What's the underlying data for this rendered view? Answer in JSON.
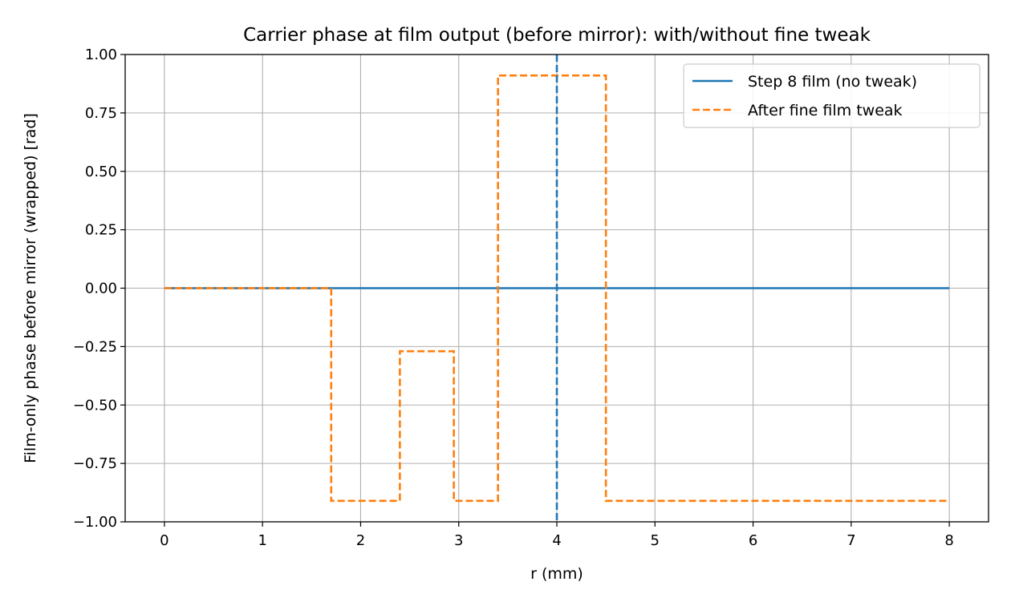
{
  "chart_data": {
    "type": "line",
    "title": "Carrier phase at film output (before mirror): with/without fine tweak",
    "xlabel": "r (mm)",
    "ylabel": "Film-only phase before mirror (wrapped) [rad]",
    "xlim": [
      -0.4,
      8.4
    ],
    "ylim": [
      -1.0,
      1.0
    ],
    "xticks": [
      0,
      1,
      2,
      3,
      4,
      5,
      6,
      7,
      8
    ],
    "yticks": [
      -1.0,
      -0.75,
      -0.5,
      -0.25,
      0.0,
      0.25,
      0.5,
      0.75,
      1.0
    ],
    "xtick_labels": [
      "0",
      "1",
      "2",
      "3",
      "4",
      "5",
      "6",
      "7",
      "8"
    ],
    "ytick_labels": [
      "−1.00",
      "−0.75",
      "−0.50",
      "−0.25",
      "0.00",
      "0.25",
      "0.50",
      "0.75",
      "1.00"
    ],
    "grid": true,
    "legend_position": "top-right",
    "vline": {
      "x": 4.0,
      "style": "dashed",
      "color": "#1f77b4"
    },
    "series": [
      {
        "name": "Step 8 film (no tweak)",
        "style": "solid",
        "color": "#1f77b4",
        "x": [
          0,
          8
        ],
        "y": [
          0.0,
          0.0
        ]
      },
      {
        "name": "After fine film tweak",
        "style": "dashed",
        "color": "#ff7f0e",
        "x": [
          0,
          1.7,
          1.7,
          2.4,
          2.4,
          2.95,
          2.95,
          3.4,
          3.4,
          4.5,
          4.5,
          8
        ],
        "y": [
          0.0,
          0.0,
          -0.91,
          -0.91,
          -0.27,
          -0.27,
          -0.91,
          -0.91,
          0.91,
          0.91,
          -0.91,
          -0.91
        ]
      }
    ]
  }
}
